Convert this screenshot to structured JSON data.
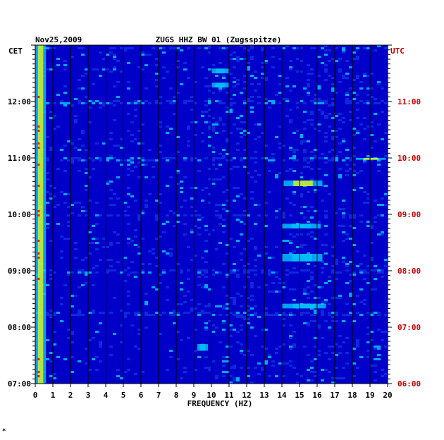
{
  "chart_data": {
    "type": "heatmap",
    "date": "Nov25,2009",
    "title": "ZUGS HHZ BW 01 (Zugsspitze)",
    "xlabel": "FREQUENCY (HZ)",
    "x_ticks": [
      "0",
      "1",
      "2",
      "3",
      "4",
      "5",
      "6",
      "7",
      "8",
      "9",
      "10",
      "11",
      "12",
      "13",
      "14",
      "15",
      "16",
      "17",
      "18",
      "19",
      "20"
    ],
    "xlim": [
      0,
      20
    ],
    "left_axis_label": "CET",
    "right_axis_label": "UTC",
    "left_time_ticks": [
      "12:00",
      "11:00",
      "10:00",
      "09:00",
      "08:00",
      "07:00"
    ],
    "right_time_ticks": [
      "11:00",
      "10:00",
      "09:00",
      "08:00",
      "07:00",
      "06:00"
    ],
    "time_range_cet": [
      "07:00",
      "13:00"
    ],
    "grid": true,
    "colors": {
      "background": "#0000c8",
      "low": "#1030e0",
      "mid": "#00c8ff",
      "high": "#ffff00",
      "peak": "#ff2000",
      "right_labels": "#cc0000"
    },
    "hotspots": [
      {
        "freq": [
          0.0,
          0.6
        ],
        "time": [
          "07:00",
          "13:00"
        ],
        "level": "high"
      },
      {
        "freq": [
          14.1,
          16.3
        ],
        "time": [
          "10:30",
          "10:36"
        ],
        "level": "high"
      },
      {
        "freq": [
          14.0,
          16.2
        ],
        "time": [
          "09:45",
          "09:50"
        ],
        "level": "mid"
      },
      {
        "freq": [
          14.0,
          16.3
        ],
        "time": [
          "09:10",
          "09:18"
        ],
        "level": "mid"
      },
      {
        "freq": [
          14.0,
          16.5
        ],
        "time": [
          "08:20",
          "08:25"
        ],
        "level": "mid"
      },
      {
        "freq": [
          9.2,
          9.8
        ],
        "time": [
          "07:35",
          "07:42"
        ],
        "level": "mid"
      },
      {
        "freq": [
          18.2,
          19.9
        ],
        "time": [
          "10:58",
          "11:00"
        ],
        "level": "high"
      },
      {
        "freq": [
          10.0,
          11.0
        ],
        "time": [
          "12:30",
          "12:35"
        ],
        "level": "mid"
      },
      {
        "freq": [
          10.0,
          11.0
        ],
        "time": [
          "12:15",
          "12:20"
        ],
        "level": "mid"
      }
    ],
    "strong_rows_cet": [
      "12:58",
      "12:00",
      "11:00",
      "10:00",
      "09:00",
      "08:15"
    ]
  },
  "footer_mark": "*"
}
